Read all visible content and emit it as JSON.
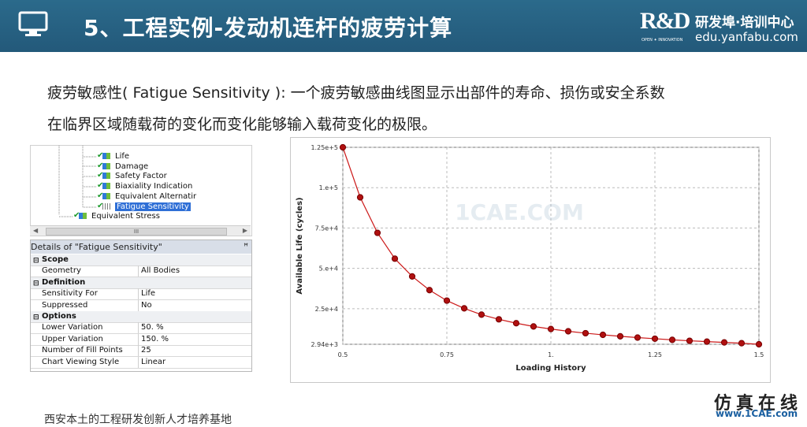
{
  "header": {
    "title": "5、工程实例-发动机连杆的疲劳计算",
    "logo_mark": "R&D",
    "logo_cn": "研发埠·培训中心",
    "logo_url": "edu.yanfabu.com",
    "logo_tagline": "OPEN ✦ INNOVATION"
  },
  "body_text": {
    "line1": "疲劳敏感性( Fatigue Sensitivity ): 一个疲劳敏感曲线图显示出部件的寿命、损伤或安全系数",
    "line2": "在临界区域随载荷的变化而变化能够输入载荷变化的极限。"
  },
  "tree": {
    "items": [
      {
        "label": "Life"
      },
      {
        "label": "Damage"
      },
      {
        "label": "Safety Factor"
      },
      {
        "label": "Biaxiality Indication"
      },
      {
        "label": "Equivalent Alternatir"
      },
      {
        "label": "Fatigue Sensitivity"
      },
      {
        "label": "Equivalent Stress"
      }
    ],
    "scroll_grip": "III"
  },
  "details": {
    "title": "Details of \"Fatigue Sensitivity\"",
    "pin": "ꟸ",
    "rows": [
      {
        "type": "section",
        "key": "Scope"
      },
      {
        "type": "prop",
        "key": "Geometry",
        "value": "All Bodies"
      },
      {
        "type": "section",
        "key": "Definition"
      },
      {
        "type": "prop",
        "key": "Sensitivity For",
        "value": "Life"
      },
      {
        "type": "prop",
        "key": "Suppressed",
        "value": "No"
      },
      {
        "type": "section",
        "key": "Options"
      },
      {
        "type": "prop",
        "key": "Lower Variation",
        "value": "50. %"
      },
      {
        "type": "prop",
        "key": "Upper Variation",
        "value": "150. %"
      },
      {
        "type": "prop",
        "key": "Number of Fill Points",
        "value": "25"
      },
      {
        "type": "prop",
        "key": "Chart Viewing Style",
        "value": "Linear"
      }
    ]
  },
  "chart_data": {
    "type": "line",
    "xlabel": "Loading History",
    "ylabel": "Available Life (cycles)",
    "xlim": [
      0.5,
      1.5
    ],
    "ylim": [
      2940,
      125000
    ],
    "x_ticks": [
      "0.5",
      "0.75",
      "1.",
      "1.25",
      "1.5"
    ],
    "y_ticks": [
      "2.94e+3",
      "2.5e+4",
      "5.e+4",
      "7.5e+4",
      "1.e+5",
      "1.25e+5"
    ],
    "grid": true,
    "line_color": "#cc1a1a",
    "marker_color": "#b01010",
    "series": [
      {
        "x": [
          0.5,
          0.5417,
          0.5833,
          0.625,
          0.6667,
          0.7083,
          0.75,
          0.7917,
          0.8333,
          0.875,
          0.9167,
          0.9583,
          1.0,
          1.0417,
          1.0833,
          1.125,
          1.1667,
          1.2083,
          1.25,
          1.2917,
          1.3333,
          1.375,
          1.4167,
          1.4583,
          1.5
        ],
        "y": [
          125000,
          94000,
          72000,
          56000,
          45000,
          36500,
          30000,
          25200,
          21300,
          18400,
          16000,
          14000,
          12400,
          11000,
          9800,
          8800,
          7900,
          7100,
          6400,
          5700,
          5100,
          4600,
          4100,
          3600,
          2940
        ]
      }
    ]
  },
  "watermark": {
    "text": "1CAE.COM"
  },
  "footer": {
    "text": "西安本土的工程研发创新人才培养基地",
    "brand": "仿真在线",
    "brand_url": "www.1CAE.com"
  }
}
